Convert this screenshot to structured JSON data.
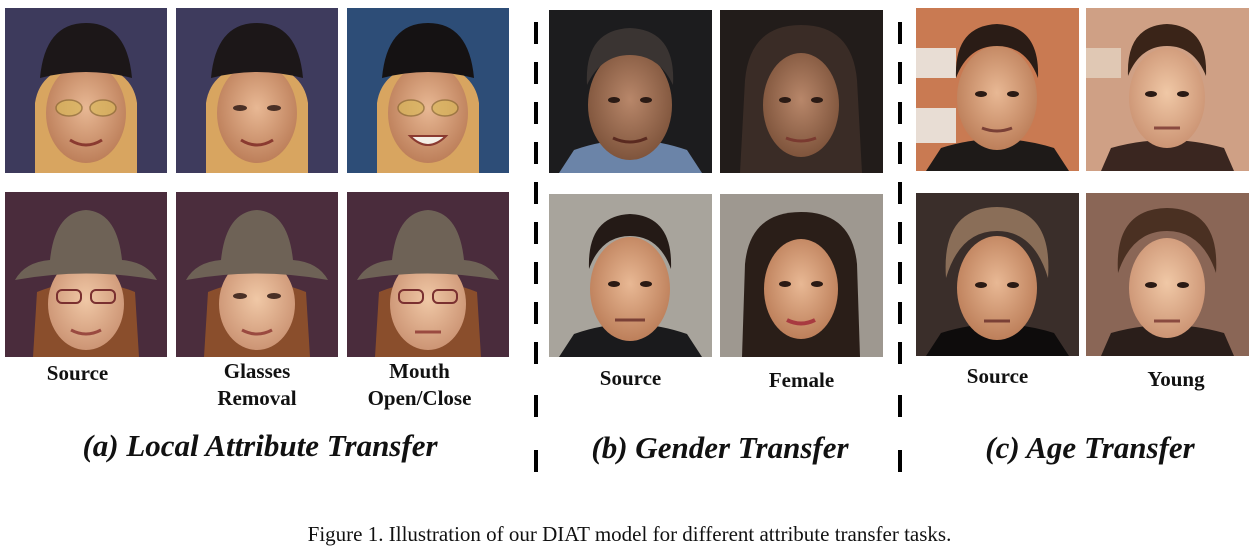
{
  "sections": {
    "local": {
      "title": "(a) Local Attribute Transfer",
      "labels": [
        "Source",
        "Glasses\nRemoval",
        "Mouth\nOpen/Close"
      ]
    },
    "gender": {
      "title": "(b) Gender Transfer",
      "labels": [
        "Source",
        "Female"
      ]
    },
    "age": {
      "title": "(c) Age Transfer",
      "labels": [
        "Source",
        "Young"
      ]
    }
  },
  "caption": "Figure 1. Illustration of our DIAT model for different attribute transfer tasks."
}
